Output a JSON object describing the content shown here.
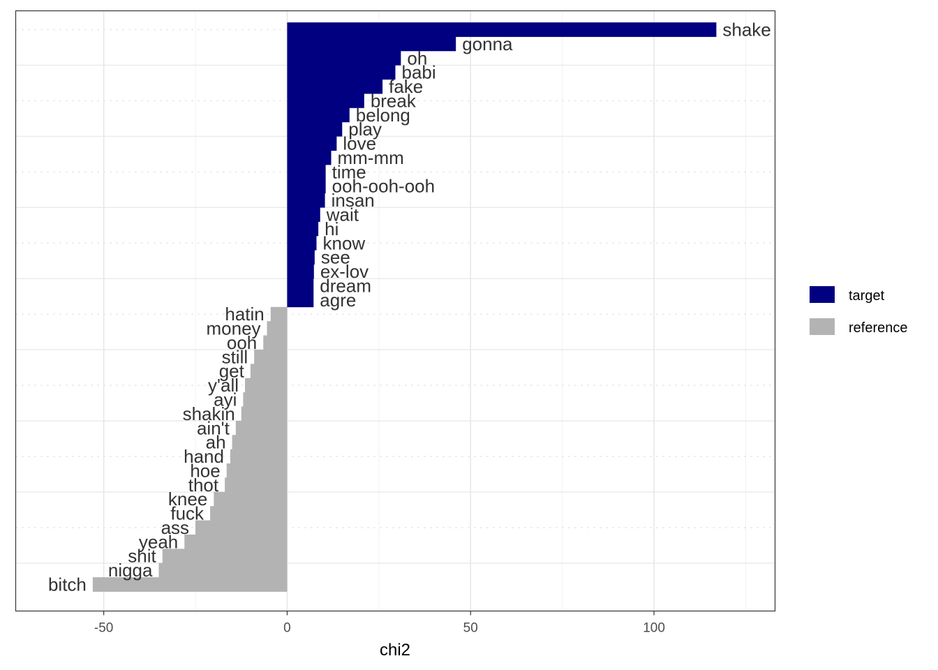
{
  "chart_data": {
    "type": "bar",
    "orientation": "horizontal",
    "xlabel": "chi2",
    "xlim": [
      -74,
      133
    ],
    "xticks": [
      -50,
      0,
      50,
      100
    ],
    "xtick_labels": [
      "-50",
      "0",
      "50",
      "100"
    ],
    "grid": true,
    "legend_position": "right",
    "legend": [
      {
        "name": "target",
        "color": "#000080"
      },
      {
        "name": "reference",
        "color": "#b3b3b3"
      }
    ],
    "series": [
      {
        "name": "target",
        "color": "#000080",
        "categories": [
          "shake",
          "gonna",
          "oh",
          "babi",
          "fake",
          "break",
          "belong",
          "play",
          "love",
          "mm-mm",
          "time",
          "ooh-ooh-ooh",
          "insan",
          "wait",
          "hi",
          "know",
          "see",
          "ex-lov",
          "dream",
          "agre"
        ],
        "values": [
          117,
          46,
          31,
          29.5,
          26,
          21,
          17,
          15,
          13.5,
          12,
          10.5,
          10.5,
          10.3,
          9,
          8.5,
          8,
          7.5,
          7.3,
          7.2,
          7.2
        ]
      },
      {
        "name": "reference",
        "color": "#b3b3b3",
        "categories": [
          "hatin",
          "money",
          "ooh",
          "still",
          "get",
          "y'all",
          "ayi",
          "shakin",
          "ain't",
          "ah",
          "hand",
          "hoe",
          "thot",
          "knee",
          "fuck",
          "ass",
          "yeah",
          "shit",
          "nigga",
          "bitch"
        ],
        "values": [
          -4.5,
          -5.5,
          -6.5,
          -9,
          -10,
          -11.5,
          -12,
          -12.5,
          -14,
          -15,
          -15.5,
          -16.5,
          -17,
          -20,
          -21,
          -25,
          -28,
          -34,
          -35,
          -53
        ]
      }
    ]
  }
}
